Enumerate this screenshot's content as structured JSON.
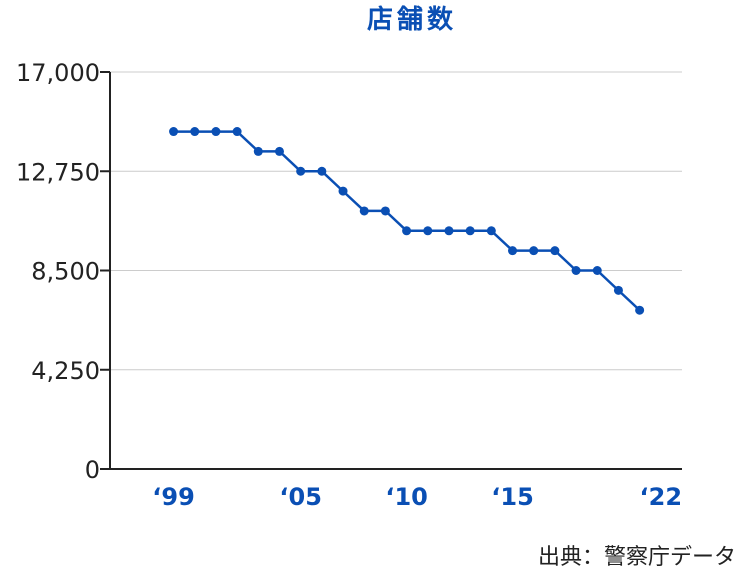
{
  "chart_data": {
    "type": "line",
    "title": "店舗数",
    "source": "出典：警察庁データ",
    "xlabel": "",
    "ylabel": "",
    "ylim": [
      0,
      17000
    ],
    "yticks": [
      "0",
      "4,250",
      "8,500",
      "12,750",
      "17,000"
    ],
    "ytick_values": [
      0,
      4250,
      8500,
      12750,
      17000
    ],
    "xtick_labels": [
      "‘99",
      "‘05",
      "‘10",
      "‘15",
      "‘22"
    ],
    "xtick_years": [
      1999,
      2005,
      2010,
      2015,
      2022
    ],
    "xlim": [
      1996,
      2023
    ],
    "grid": true,
    "series_color": "#0a4fb4",
    "x": [
      1999,
      2000,
      2001,
      2002,
      2003,
      2004,
      2005,
      2006,
      2007,
      2008,
      2009,
      2010,
      2011,
      2012,
      2013,
      2014,
      2015,
      2016,
      2017,
      2018,
      2019,
      2020,
      2021
    ],
    "values": [
      14450,
      14450,
      14450,
      14450,
      13600,
      13600,
      12750,
      12750,
      11900,
      11050,
      11050,
      10200,
      10200,
      10200,
      10200,
      10200,
      9350,
      9350,
      9350,
      8500,
      8500,
      7650,
      6800
    ]
  }
}
